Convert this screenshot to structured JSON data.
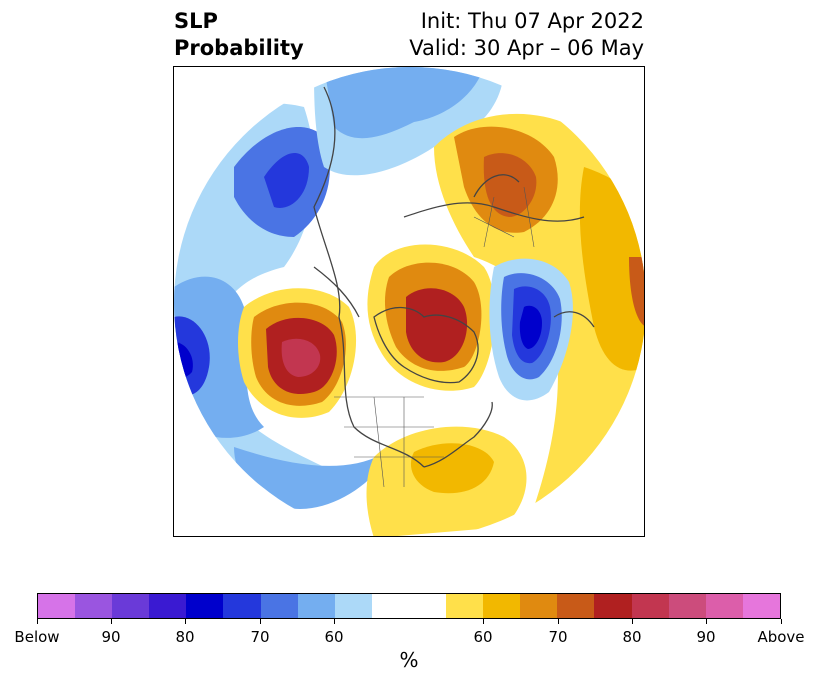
{
  "title": {
    "left_line1": "SLP",
    "left_line2": "Probability",
    "right_line1": "Init: Thu 07 Apr 2022",
    "right_line2": "Valid: 30 Apr – 06 May"
  },
  "colorbar": {
    "unit": "%",
    "colors": [
      "#d673e8",
      "#9a55e0",
      "#6a3ad8",
      "#3a1ad2",
      "#0000cc",
      "#2438dc",
      "#4a74e4",
      "#74aef0",
      "#acd9f8",
      "#ffffff",
      "#ffe04a",
      "#f2b800",
      "#e08a10",
      "#c85a18",
      "#b02020",
      "#c23650",
      "#cc4c7c",
      "#dc5eaa",
      "#e676dc"
    ],
    "tick_labels": [
      "Below",
      "90",
      "80",
      "70",
      "60",
      "60",
      "70",
      "80",
      "90",
      "Above"
    ]
  },
  "map": {
    "projection": "north-polar-stereographic",
    "features": [
      "blue-low-north-pacific",
      "red-high-gulf-of-alaska",
      "red-high-greenland",
      "blue-low-norwegian-sea",
      "orange-high-scandinavia",
      "yellow-high-eastern-us"
    ]
  }
}
